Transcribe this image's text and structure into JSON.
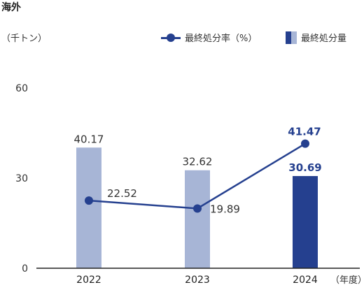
{
  "page_title": "海外",
  "unit_label": "（千トン）",
  "legend": {
    "line_label": "最終処分率（%）",
    "bar_label": "最終処分量",
    "bar_swatch_colors": [
      "#25408f",
      "#a7b5d6"
    ]
  },
  "colors": {
    "bar_previous": "#a7b5d6",
    "bar_current": "#25408f",
    "line": "#25408f",
    "axis": "#222222"
  },
  "chart_data": {
    "type": "bar",
    "categories": [
      "2022",
      "2023",
      "2024"
    ],
    "series": [
      {
        "name": "最終処分量",
        "type": "bar",
        "values": [
          40.17,
          32.62,
          30.69
        ],
        "highlight_last": true
      },
      {
        "name": "最終処分率（%）",
        "type": "line",
        "values": [
          22.52,
          19.89,
          41.47
        ]
      }
    ],
    "ylim": [
      0,
      60
    ],
    "yticks": [
      0,
      30,
      60
    ],
    "x_unit": "（年度）",
    "grid": false
  }
}
